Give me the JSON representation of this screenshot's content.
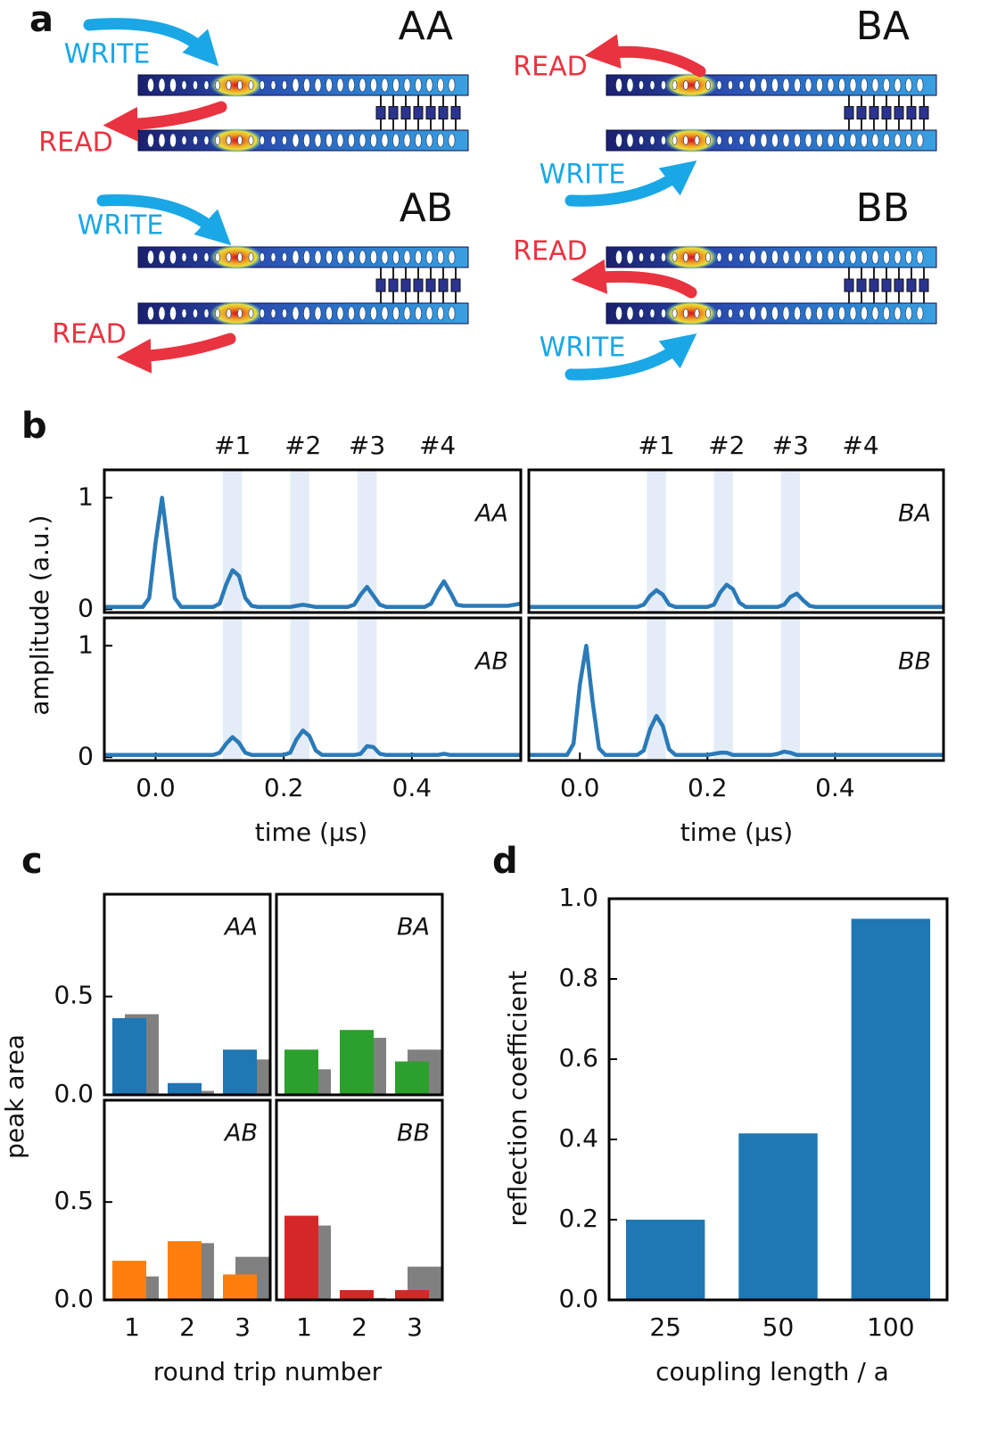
{
  "panel_labels": [
    "a",
    "b",
    "c",
    "d"
  ],
  "diagram": {
    "devices": [
      {
        "label": "AA",
        "write": "WRITE",
        "read": "READ"
      },
      {
        "label": "BA",
        "write": "WRITE",
        "read": "READ"
      },
      {
        "label": "AB",
        "write": "WRITE",
        "read": "READ"
      },
      {
        "label": "BB",
        "write": "WRITE",
        "read": "READ"
      }
    ]
  },
  "chart_data": [
    {
      "type": "line",
      "label": "AA",
      "ylabel": "amplitude (a.u.)",
      "xlim": [
        -0.08,
        0.57
      ],
      "ylim": [
        -0.03,
        1.25
      ],
      "yticks": [
        0,
        1
      ],
      "bands": [
        [
          0.105,
          0.135
        ],
        [
          0.21,
          0.24
        ],
        [
          0.315,
          0.345
        ]
      ],
      "annotations": [
        {
          "text": "#1",
          "x": 0.12
        },
        {
          "text": "#2",
          "x": 0.23
        },
        {
          "text": "#3",
          "x": 0.33
        },
        {
          "text": "#4",
          "x": 0.44
        }
      ],
      "x": [
        -0.08,
        -0.07,
        -0.06,
        -0.05,
        -0.04,
        -0.03,
        -0.02,
        -0.01,
        0,
        0.01,
        0.02,
        0.03,
        0.04,
        0.05,
        0.06,
        0.07,
        0.08,
        0.09,
        0.1,
        0.11,
        0.12,
        0.13,
        0.14,
        0.15,
        0.16,
        0.17,
        0.18,
        0.19,
        0.2,
        0.21,
        0.22,
        0.23,
        0.24,
        0.25,
        0.26,
        0.27,
        0.28,
        0.29,
        0.3,
        0.31,
        0.32,
        0.33,
        0.34,
        0.35,
        0.36,
        0.37,
        0.38,
        0.39,
        0.4,
        0.41,
        0.42,
        0.43,
        0.44,
        0.45,
        0.46,
        0.47,
        0.48,
        0.49,
        0.5,
        0.51,
        0.52,
        0.53,
        0.54,
        0.55,
        0.56,
        0.57
      ],
      "series": [
        {
          "color": "#2a7ab8",
          "values": [
            0.02,
            0.02,
            0.02,
            0.02,
            0.02,
            0.02,
            0.02,
            0.1,
            0.6,
            1.0,
            0.55,
            0.1,
            0.02,
            0.02,
            0.02,
            0.02,
            0.02,
            0.02,
            0.05,
            0.22,
            0.35,
            0.3,
            0.1,
            0.03,
            0.02,
            0.02,
            0.02,
            0.02,
            0.02,
            0.02,
            0.03,
            0.04,
            0.03,
            0.02,
            0.02,
            0.02,
            0.02,
            0.02,
            0.02,
            0.04,
            0.13,
            0.2,
            0.12,
            0.04,
            0.02,
            0.02,
            0.02,
            0.02,
            0.02,
            0.02,
            0.02,
            0.05,
            0.16,
            0.25,
            0.15,
            0.04,
            0.03,
            0.03,
            0.03,
            0.03,
            0.03,
            0.03,
            0.03,
            0.03,
            0.04,
            0.05
          ]
        }
      ]
    },
    {
      "type": "line",
      "label": "BA",
      "xlim": [
        -0.08,
        0.57
      ],
      "ylim": [
        -0.03,
        1.25
      ],
      "bands": [
        [
          0.105,
          0.135
        ],
        [
          0.21,
          0.24
        ],
        [
          0.315,
          0.345
        ]
      ],
      "annotations": [
        {
          "text": "#1",
          "x": 0.12
        },
        {
          "text": "#2",
          "x": 0.23
        },
        {
          "text": "#3",
          "x": 0.33
        },
        {
          "text": "#4",
          "x": 0.44
        }
      ],
      "x": [
        -0.08,
        -0.07,
        -0.06,
        -0.05,
        -0.04,
        -0.03,
        -0.02,
        -0.01,
        0,
        0.01,
        0.02,
        0.03,
        0.04,
        0.05,
        0.06,
        0.07,
        0.08,
        0.09,
        0.1,
        0.11,
        0.12,
        0.13,
        0.14,
        0.15,
        0.16,
        0.17,
        0.18,
        0.19,
        0.2,
        0.21,
        0.22,
        0.23,
        0.24,
        0.25,
        0.26,
        0.27,
        0.28,
        0.29,
        0.3,
        0.31,
        0.32,
        0.33,
        0.34,
        0.35,
        0.36,
        0.37,
        0.38,
        0.39,
        0.4,
        0.41,
        0.42,
        0.43,
        0.44,
        0.45,
        0.46,
        0.47,
        0.48,
        0.49,
        0.5,
        0.51,
        0.52,
        0.53,
        0.54,
        0.55,
        0.56,
        0.57
      ],
      "series": [
        {
          "color": "#2a7ab8",
          "values": [
            0.02,
            0.02,
            0.02,
            0.02,
            0.02,
            0.02,
            0.02,
            0.02,
            0.02,
            0.02,
            0.02,
            0.02,
            0.02,
            0.02,
            0.02,
            0.02,
            0.02,
            0.02,
            0.04,
            0.12,
            0.17,
            0.13,
            0.04,
            0.02,
            0.02,
            0.02,
            0.02,
            0.02,
            0.02,
            0.04,
            0.15,
            0.22,
            0.18,
            0.06,
            0.02,
            0.02,
            0.02,
            0.02,
            0.02,
            0.02,
            0.04,
            0.11,
            0.14,
            0.08,
            0.03,
            0.02,
            0.02,
            0.02,
            0.02,
            0.02,
            0.02,
            0.02,
            0.02,
            0.02,
            0.02,
            0.02,
            0.02,
            0.02,
            0.02,
            0.02,
            0.02,
            0.02,
            0.02,
            0.02,
            0.02,
            0.02
          ]
        }
      ]
    },
    {
      "type": "line",
      "label": "AB",
      "xlabel": "time (μs)",
      "xlim": [
        -0.08,
        0.57
      ],
      "ylim": [
        -0.03,
        1.25
      ],
      "yticks": [
        0,
        1
      ],
      "xticks": [
        {
          "value": 0,
          "label": "0.0"
        },
        0.2,
        0.4
      ],
      "bands": [
        [
          0.105,
          0.135
        ],
        [
          0.21,
          0.24
        ],
        [
          0.315,
          0.345
        ]
      ],
      "x": [
        -0.08,
        -0.07,
        -0.06,
        -0.05,
        -0.04,
        -0.03,
        -0.02,
        -0.01,
        0,
        0.01,
        0.02,
        0.03,
        0.04,
        0.05,
        0.06,
        0.07,
        0.08,
        0.09,
        0.1,
        0.11,
        0.12,
        0.13,
        0.14,
        0.15,
        0.16,
        0.17,
        0.18,
        0.19,
        0.2,
        0.21,
        0.22,
        0.23,
        0.24,
        0.25,
        0.26,
        0.27,
        0.28,
        0.29,
        0.3,
        0.31,
        0.32,
        0.33,
        0.34,
        0.35,
        0.36,
        0.37,
        0.38,
        0.39,
        0.4,
        0.41,
        0.42,
        0.43,
        0.44,
        0.45,
        0.46,
        0.47,
        0.48,
        0.49,
        0.5,
        0.51,
        0.52,
        0.53,
        0.54,
        0.55,
        0.56,
        0.57
      ],
      "series": [
        {
          "color": "#2a7ab8",
          "values": [
            0.02,
            0.02,
            0.02,
            0.02,
            0.02,
            0.02,
            0.02,
            0.02,
            0.02,
            0.02,
            0.02,
            0.02,
            0.02,
            0.02,
            0.02,
            0.02,
            0.02,
            0.02,
            0.04,
            0.12,
            0.18,
            0.13,
            0.04,
            0.02,
            0.02,
            0.02,
            0.02,
            0.02,
            0.02,
            0.04,
            0.16,
            0.24,
            0.19,
            0.06,
            0.02,
            0.02,
            0.02,
            0.02,
            0.02,
            0.02,
            0.03,
            0.1,
            0.09,
            0.03,
            0.02,
            0.02,
            0.02,
            0.02,
            0.02,
            0.02,
            0.02,
            0.02,
            0.02,
            0.03,
            0.02,
            0.02,
            0.02,
            0.02,
            0.02,
            0.02,
            0.02,
            0.02,
            0.02,
            0.02,
            0.02,
            0.02
          ]
        }
      ]
    },
    {
      "type": "line",
      "label": "BB",
      "xlabel": "time (μs)",
      "xlim": [
        -0.08,
        0.57
      ],
      "ylim": [
        -0.03,
        1.25
      ],
      "xticks": [
        {
          "value": 0,
          "label": "0.0"
        },
        0.2,
        0.4
      ],
      "bands": [
        [
          0.105,
          0.135
        ],
        [
          0.21,
          0.24
        ],
        [
          0.315,
          0.345
        ]
      ],
      "x": [
        -0.08,
        -0.07,
        -0.06,
        -0.05,
        -0.04,
        -0.03,
        -0.02,
        -0.01,
        0,
        0.01,
        0.02,
        0.03,
        0.04,
        0.05,
        0.06,
        0.07,
        0.08,
        0.09,
        0.1,
        0.11,
        0.12,
        0.13,
        0.14,
        0.15,
        0.16,
        0.17,
        0.18,
        0.19,
        0.2,
        0.21,
        0.22,
        0.23,
        0.24,
        0.25,
        0.26,
        0.27,
        0.28,
        0.29,
        0.3,
        0.31,
        0.32,
        0.33,
        0.34,
        0.35,
        0.36,
        0.37,
        0.38,
        0.39,
        0.4,
        0.41,
        0.42,
        0.43,
        0.44,
        0.45,
        0.46,
        0.47,
        0.48,
        0.49,
        0.5,
        0.51,
        0.52,
        0.53,
        0.54,
        0.55,
        0.56,
        0.57
      ],
      "series": [
        {
          "color": "#2a7ab8",
          "values": [
            0.02,
            0.02,
            0.02,
            0.02,
            0.02,
            0.02,
            0.02,
            0.12,
            0.65,
            1.0,
            0.5,
            0.08,
            0.02,
            0.02,
            0.02,
            0.02,
            0.02,
            0.02,
            0.06,
            0.25,
            0.37,
            0.28,
            0.07,
            0.02,
            0.02,
            0.02,
            0.02,
            0.02,
            0.02,
            0.03,
            0.04,
            0.04,
            0.02,
            0.02,
            0.02,
            0.02,
            0.02,
            0.02,
            0.02,
            0.03,
            0.05,
            0.04,
            0.02,
            0.02,
            0.02,
            0.02,
            0.02,
            0.02,
            0.02,
            0.02,
            0.02,
            0.02,
            0.02,
            0.02,
            0.02,
            0.02,
            0.02,
            0.02,
            0.02,
            0.02,
            0.02,
            0.02,
            0.02,
            0.02,
            0.02,
            0.02
          ]
        }
      ]
    },
    {
      "type": "bar",
      "label": "AA",
      "ylabel": "peak area",
      "ylim": [
        0,
        1.02
      ],
      "yticks": [
        {
          "value": 0,
          "label": "0.0"
        },
        0.5
      ],
      "series": [
        {
          "color": "#1f77b4",
          "values": [
            0.39,
            0.06,
            0.23
          ]
        },
        {
          "color": "#808080",
          "values": [
            0.41,
            0.02,
            0.18
          ]
        }
      ]
    },
    {
      "type": "bar",
      "label": "BA",
      "ylim": [
        0,
        1.02
      ],
      "series": [
        {
          "color": "#2ca02c",
          "values": [
            0.23,
            0.33,
            0.17
          ]
        },
        {
          "color": "#808080",
          "values": [
            0.13,
            0.29,
            0.23
          ]
        }
      ]
    },
    {
      "type": "bar",
      "label": "AB",
      "xlabel": "round trip number",
      "ylim": [
        0,
        1.02
      ],
      "yticks": [
        {
          "value": 0,
          "label": "0.0"
        },
        0.5
      ],
      "categories": [
        "1",
        "2",
        "3"
      ],
      "series": [
        {
          "color": "#ff7f0e",
          "values": [
            0.2,
            0.3,
            0.13
          ]
        },
        {
          "color": "#808080",
          "values": [
            0.12,
            0.29,
            0.22
          ]
        }
      ]
    },
    {
      "type": "bar",
      "label": "BB",
      "ylim": [
        0,
        1.02
      ],
      "categories": [
        "1",
        "2",
        "3"
      ],
      "series": [
        {
          "color": "#d62728",
          "values": [
            0.43,
            0.05,
            0.05
          ]
        },
        {
          "color": "#808080",
          "values": [
            0.38,
            0.01,
            0.17
          ]
        }
      ]
    },
    {
      "type": "bar",
      "xlabel": "coupling length / a",
      "ylabel": "reflection coefficient",
      "categories": [
        "25",
        "50",
        "100"
      ],
      "values": [
        0.2,
        0.415,
        0.95
      ],
      "color": "#1f77b4",
      "ylim": [
        0,
        1.0
      ],
      "yticks": [
        {
          "value": 0,
          "label": "0.0"
        },
        0.2,
        0.4,
        0.6,
        0.8,
        {
          "value": 1.0,
          "label": "1.0"
        }
      ]
    }
  ]
}
